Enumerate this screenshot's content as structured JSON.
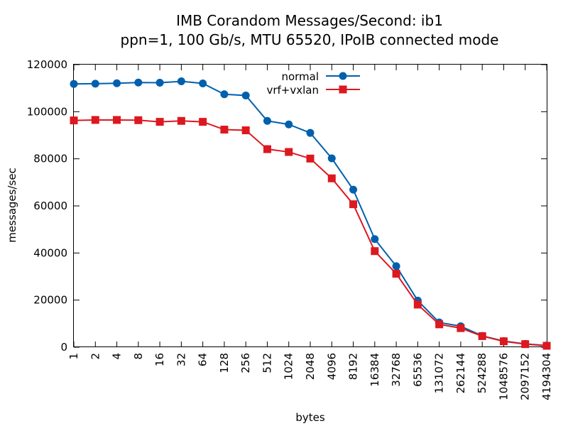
{
  "chart_data": {
    "type": "line",
    "title": "IMB Corandom Messages/Second: ib1",
    "subtitle": "ppn=1, 100 Gb/s, MTU 65520, IPoIB connected mode",
    "xlabel": "bytes",
    "ylabel": "messages/sec",
    "ylim": [
      0,
      120000
    ],
    "y_ticks": [
      "0",
      "20000",
      "40000",
      "60000",
      "80000",
      "100000",
      "120000"
    ],
    "categories": [
      "1",
      "2",
      "4",
      "8",
      "16",
      "32",
      "64",
      "128",
      "256",
      "512",
      "1024",
      "2048",
      "4096",
      "8192",
      "16384",
      "32768",
      "65536",
      "131072",
      "262144",
      "524288",
      "1048576",
      "2097152",
      "4194304"
    ],
    "grid": false,
    "legend_position": "top-center",
    "series": [
      {
        "name": "normal",
        "color": "#0060ad",
        "marker": "circle",
        "values": [
          111800,
          111900,
          112100,
          112400,
          112300,
          112900,
          112000,
          107400,
          106900,
          96100,
          94600,
          91000,
          80200,
          66900,
          45900,
          34400,
          19800,
          10500,
          8900,
          4800,
          2600,
          1400,
          700
        ]
      },
      {
        "name": "vrf+vxlan",
        "color": "#dd181f",
        "marker": "square",
        "values": [
          96300,
          96500,
          96500,
          96400,
          95700,
          96100,
          95700,
          92400,
          92100,
          84100,
          82900,
          80100,
          71700,
          60700,
          40800,
          31200,
          18100,
          9700,
          8100,
          4700,
          2500,
          1300,
          600
        ]
      }
    ]
  }
}
